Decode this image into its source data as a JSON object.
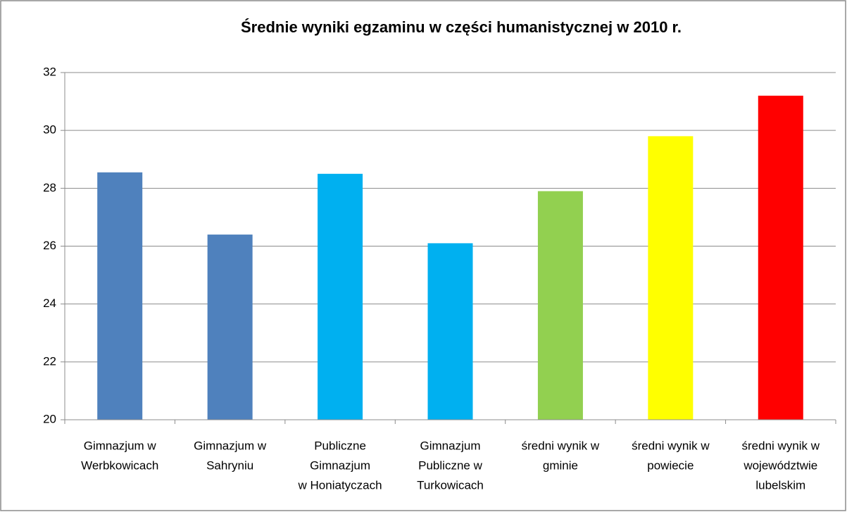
{
  "chart_data": {
    "type": "bar",
    "title": "Średnie wyniki egzaminu w części humanistycznej w 2010 r.",
    "categories": [
      [
        "Gimnazjum w",
        "Werbkowicach"
      ],
      [
        "Gimnazjum w",
        "Sahryniu"
      ],
      [
        "Publiczne",
        "Gimnazjum",
        "w Honiatyczach"
      ],
      [
        "Gimnazjum",
        "Publiczne w",
        "Turkowicach"
      ],
      [
        "średni wynik w",
        "gminie"
      ],
      [
        "średni wynik w",
        "powiecie"
      ],
      [
        "średni wynik w",
        "województwie",
        "lubelskim"
      ]
    ],
    "values": [
      28.55,
      26.4,
      28.5,
      26.1,
      27.9,
      29.8,
      31.2
    ],
    "colors": [
      "#4f81bd",
      "#4f81bd",
      "#00b0f0",
      "#00b0f0",
      "#92d050",
      "#ffff00",
      "#ff0000"
    ],
    "ylim": [
      20,
      32
    ],
    "yticks": [
      20,
      22,
      24,
      26,
      28,
      30,
      32
    ],
    "grid": true
  }
}
